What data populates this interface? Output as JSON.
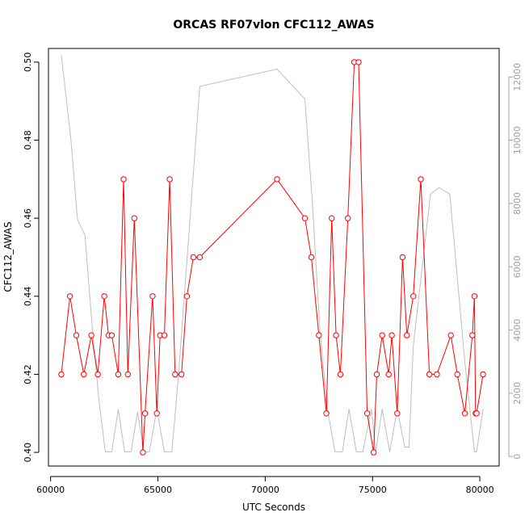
{
  "chart_data": {
    "type": "line",
    "title": "ORCAS RF07vlon CFC112_AWAS",
    "xlabel": "UTC Seconds",
    "ylabel": "CFC112_AWAS",
    "xlim": [
      59900,
      80900
    ],
    "ylim": [
      0.3965,
      0.5035
    ],
    "y2lim": [
      -300,
      12900
    ],
    "x_ticks": [
      60000,
      65000,
      70000,
      75000,
      80000
    ],
    "x_tick_labels": [
      "60000",
      "65000",
      "70000",
      "75000",
      "80000"
    ],
    "y_ticks": [
      0.4,
      0.42,
      0.44,
      0.46,
      0.48,
      0.5
    ],
    "y_tick_labels": [
      "0.40",
      "0.42",
      "0.44",
      "0.46",
      "0.48",
      "0.50"
    ],
    "y2_ticks": [
      0,
      2000,
      4000,
      6000,
      8000,
      10000,
      12000
    ],
    "y2_tick_labels": [
      "0",
      "2000",
      "4000",
      "6000",
      "8000",
      "10000",
      "12000"
    ],
    "grid": false,
    "legend": "none",
    "colors": {
      "primary": "#ff0000",
      "secondary": "#bebebe",
      "axis": "#000000",
      "axis2": "#a0a0a0"
    },
    "series": [
      {
        "axis": "left",
        "style": "line+points",
        "color": "#ff0000",
        "x": [
          60500,
          60900,
          61200,
          61550,
          61900,
          62200,
          62500,
          62700,
          62850,
          63150,
          63400,
          63600,
          63900,
          64300,
          64400,
          64750,
          64950,
          65100,
          65300,
          65550,
          65800,
          66100,
          66350,
          66650,
          66950,
          70550,
          71850,
          72150,
          72500,
          72850,
          73100,
          73300,
          73500,
          73850,
          74150,
          74350,
          74750,
          75050,
          75200,
          75450,
          75750,
          75900,
          76150,
          76400,
          76600,
          76900,
          77250,
          77650,
          78000,
          78650,
          78950,
          79300,
          79650,
          79750,
          79800,
          79850,
          80150
        ],
        "y": [
          0.42,
          0.44,
          0.43,
          0.42,
          0.43,
          0.42,
          0.44,
          0.43,
          0.43,
          0.42,
          0.47,
          0.42,
          0.46,
          0.4,
          0.41,
          0.44,
          0.41,
          0.43,
          0.43,
          0.47,
          0.42,
          0.42,
          0.44,
          0.45,
          0.45,
          0.47,
          0.46,
          0.45,
          0.43,
          0.41,
          0.46,
          0.43,
          0.42,
          0.46,
          0.5,
          0.5,
          0.41,
          0.4,
          0.42,
          0.43,
          0.42,
          0.43,
          0.41,
          0.45,
          0.43,
          0.44,
          0.47,
          0.42,
          0.42,
          0.43,
          0.42,
          0.41,
          0.43,
          0.44,
          0.41,
          0.41,
          0.42
        ]
      },
      {
        "axis": "right",
        "style": "line",
        "color": "#bebebe",
        "x": [
          60500,
          60950,
          61250,
          61600,
          61950,
          62250,
          62550,
          62850,
          63150,
          63450,
          63750,
          64050,
          64350,
          64600,
          64950,
          65300,
          65650,
          65950,
          66950,
          70550,
          71850,
          72200,
          72550,
          72900,
          73250,
          73600,
          73900,
          74250,
          74550,
          74950,
          75150,
          75450,
          75800,
          76150,
          76500,
          76700,
          76900,
          77700,
          78100,
          78600,
          79300,
          79750,
          79850,
          80150
        ],
        "y": [
          12700,
          10000,
          7500,
          7000,
          4000,
          1800,
          150,
          150,
          1500,
          150,
          150,
          1400,
          150,
          150,
          1500,
          150,
          150,
          2500,
          11700,
          12250,
          11300,
          8000,
          4000,
          1500,
          150,
          150,
          1500,
          150,
          150,
          1500,
          150,
          1500,
          150,
          1500,
          300,
          300,
          3500,
          8300,
          8500,
          8300,
          3000,
          150,
          150,
          1500
        ]
      }
    ]
  }
}
